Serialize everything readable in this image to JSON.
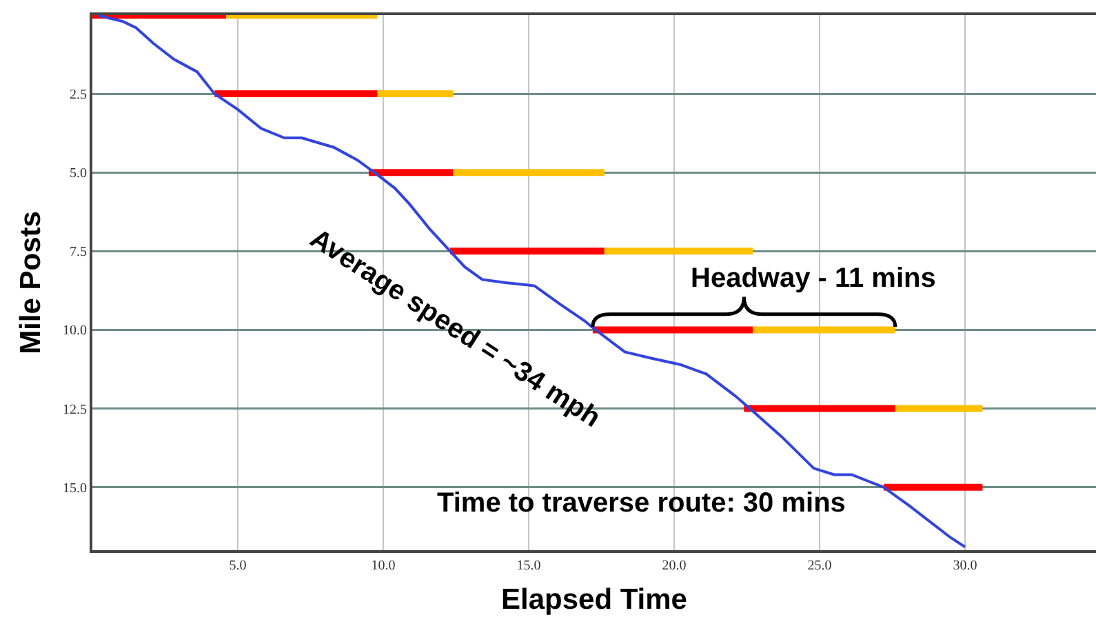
{
  "chart_data": {
    "type": "line",
    "xlabel": "Elapsed Time",
    "ylabel": "Mile Posts",
    "xlim": [
      0,
      34.5
    ],
    "ylim": [
      17,
      0
    ],
    "xticks": [
      {
        "value": 5,
        "label": "5.0"
      },
      {
        "value": 10,
        "label": "10.0"
      },
      {
        "value": 15,
        "label": "15.0"
      },
      {
        "value": 20,
        "label": "20.0"
      },
      {
        "value": 25,
        "label": "25.0"
      },
      {
        "value": 30,
        "label": "30.0"
      }
    ],
    "yticks": [
      2.5,
      {
        "value": 5,
        "label": "5.0"
      },
      7.5,
      {
        "value": 10,
        "label": "10.0"
      },
      12.5,
      {
        "value": 15,
        "label": "15.0"
      }
    ],
    "grid": true,
    "series": [
      {
        "color": "#ff0000",
        "x": [
          0,
          4.6,
          null,
          4.2,
          9.8,
          null,
          9.5,
          12.4,
          null,
          12.3,
          17.6,
          null,
          17.2,
          22.7,
          null,
          22.4,
          27.6,
          null,
          27.2,
          30.6
        ],
        "values": [
          0,
          0,
          null,
          2.5,
          2.5,
          null,
          5,
          5,
          null,
          7.5,
          7.5,
          null,
          10,
          10,
          null,
          12.5,
          12.5,
          null,
          15,
          15
        ]
      },
      {
        "color": "#ffc000",
        "x": [
          4.6,
          9.8,
          null,
          9.8,
          12.4,
          null,
          12.4,
          17.6,
          null,
          17.6,
          22.7,
          null,
          22.7,
          27.6,
          null,
          27.6,
          30.6
        ],
        "values": [
          0,
          0,
          null,
          2.5,
          2.5,
          null,
          5,
          5,
          null,
          7.5,
          7.5,
          null,
          10,
          10,
          null,
          12.5,
          12.5
        ]
      },
      {
        "color": "#3344dd",
        "x": [
          0.2,
          0.6,
          1.05,
          1.5,
          2.1,
          2.8,
          3.6,
          4.2,
          5.0,
          5.8,
          6.6,
          7.2,
          8.3,
          9.1,
          9.7,
          10.4,
          10.9,
          11.6,
          12.3,
          12.8,
          13.4,
          14.2,
          15.2,
          16.1,
          16.9,
          17.3,
          18.3,
          19.2,
          20.2,
          21.1,
          22.1,
          22.6,
          23.7,
          24.8,
          25.5,
          26.1,
          27.2,
          28.1,
          29.5,
          30.0
        ],
        "values": [
          0,
          0.1,
          0.2,
          0.4,
          0.9,
          1.4,
          1.8,
          2.5,
          3.0,
          3.6,
          3.9,
          3.9,
          4.2,
          4.6,
          5.0,
          5.5,
          6.0,
          6.8,
          7.5,
          8.0,
          8.4,
          8.5,
          8.6,
          9.2,
          9.7,
          10.0,
          10.7,
          10.9,
          11.1,
          11.4,
          12.1,
          12.5,
          13.4,
          14.4,
          14.6,
          14.6,
          15.0,
          15.6,
          16.6,
          16.9
        ]
      }
    ],
    "annotations": [
      {
        "text": "Average speed = ~34 mph",
        "x": 12.3,
        "y": 7.5
      },
      {
        "text": "Headway - 11 mins",
        "x": 24.8,
        "y": 10
      },
      "Time to traverse route: 30 mins"
    ]
  }
}
